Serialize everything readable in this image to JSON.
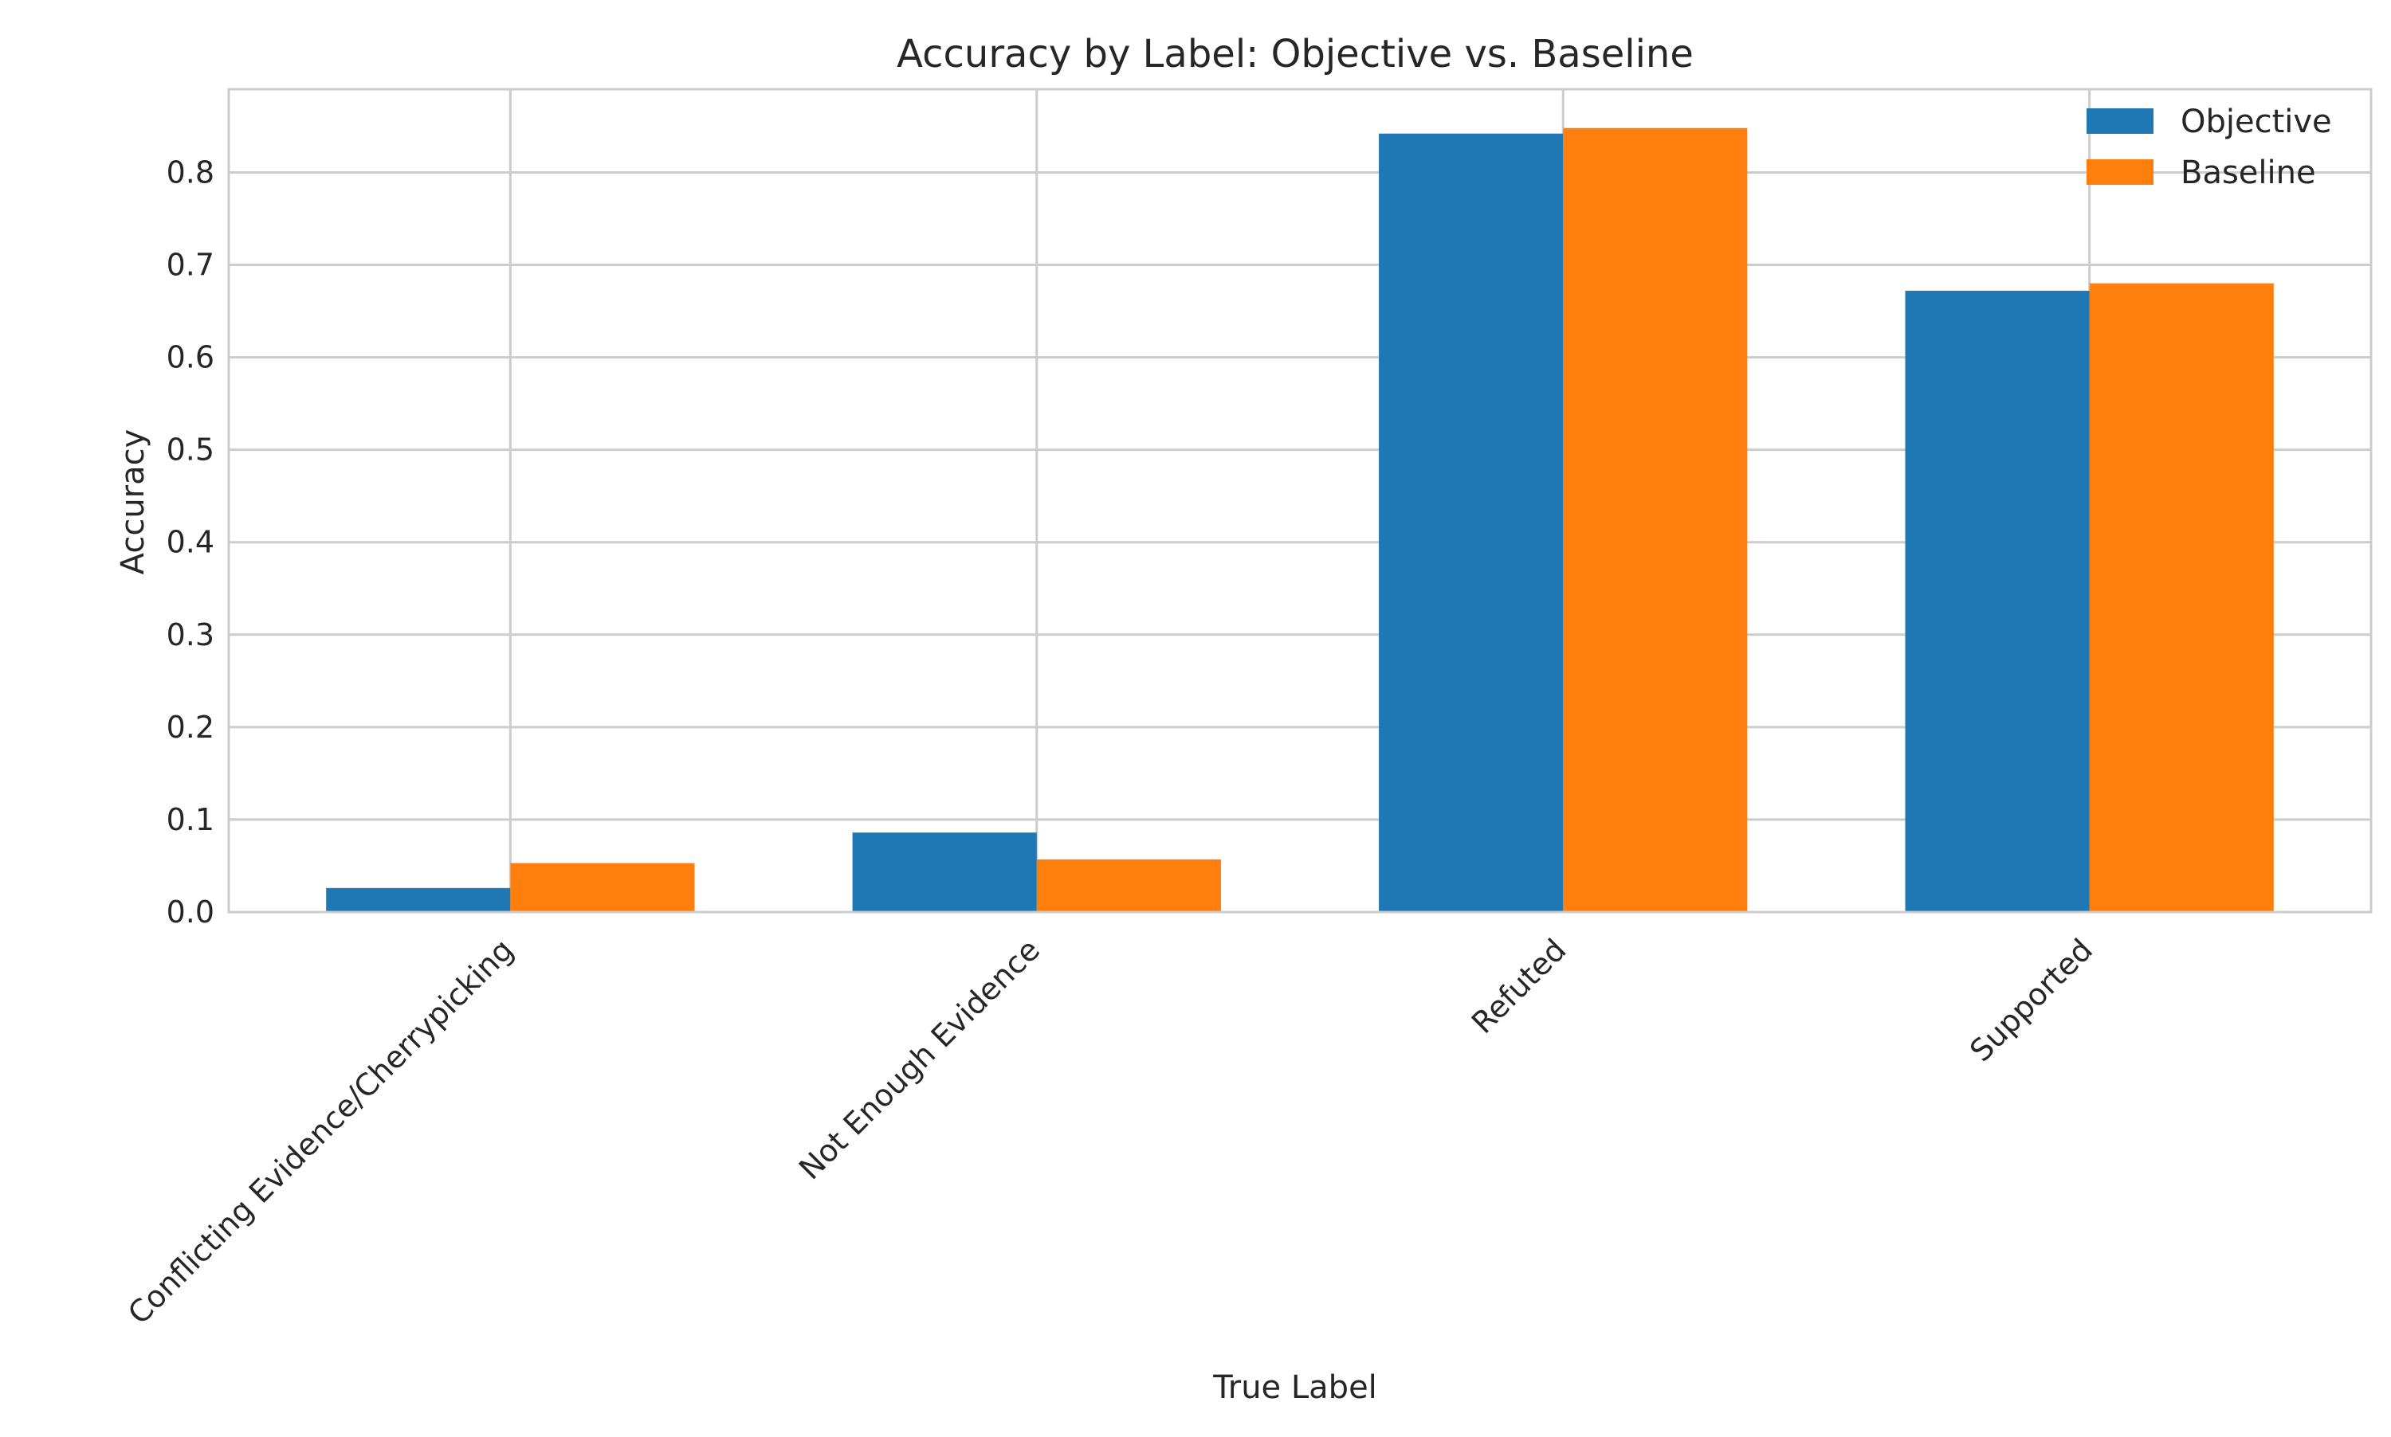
{
  "chart_data": {
    "type": "bar",
    "title": "Accuracy by Label: Objective vs. Baseline",
    "xlabel": "True Label",
    "ylabel": "Accuracy",
    "categories": [
      "Conflicting Evidence/Cherrypicking",
      "Not Enough Evidence",
      "Refuted",
      "Supported"
    ],
    "series": [
      {
        "name": "Objective",
        "color": "#1f77b4",
        "values": [
          0.026,
          0.086,
          0.842,
          0.672
        ]
      },
      {
        "name": "Baseline",
        "color": "#ff7f0e",
        "values": [
          0.053,
          0.057,
          0.848,
          0.68
        ]
      }
    ],
    "ylim": [
      0,
      0.89
    ],
    "yticks": [
      0.0,
      0.1,
      0.2,
      0.3,
      0.4,
      0.5,
      0.6,
      0.7,
      0.8
    ],
    "ytick_labels": [
      "0.0",
      "0.1",
      "0.2",
      "0.3",
      "0.4",
      "0.5",
      "0.6",
      "0.7",
      "0.8"
    ],
    "grid": true,
    "legend_position": "top-right"
  }
}
